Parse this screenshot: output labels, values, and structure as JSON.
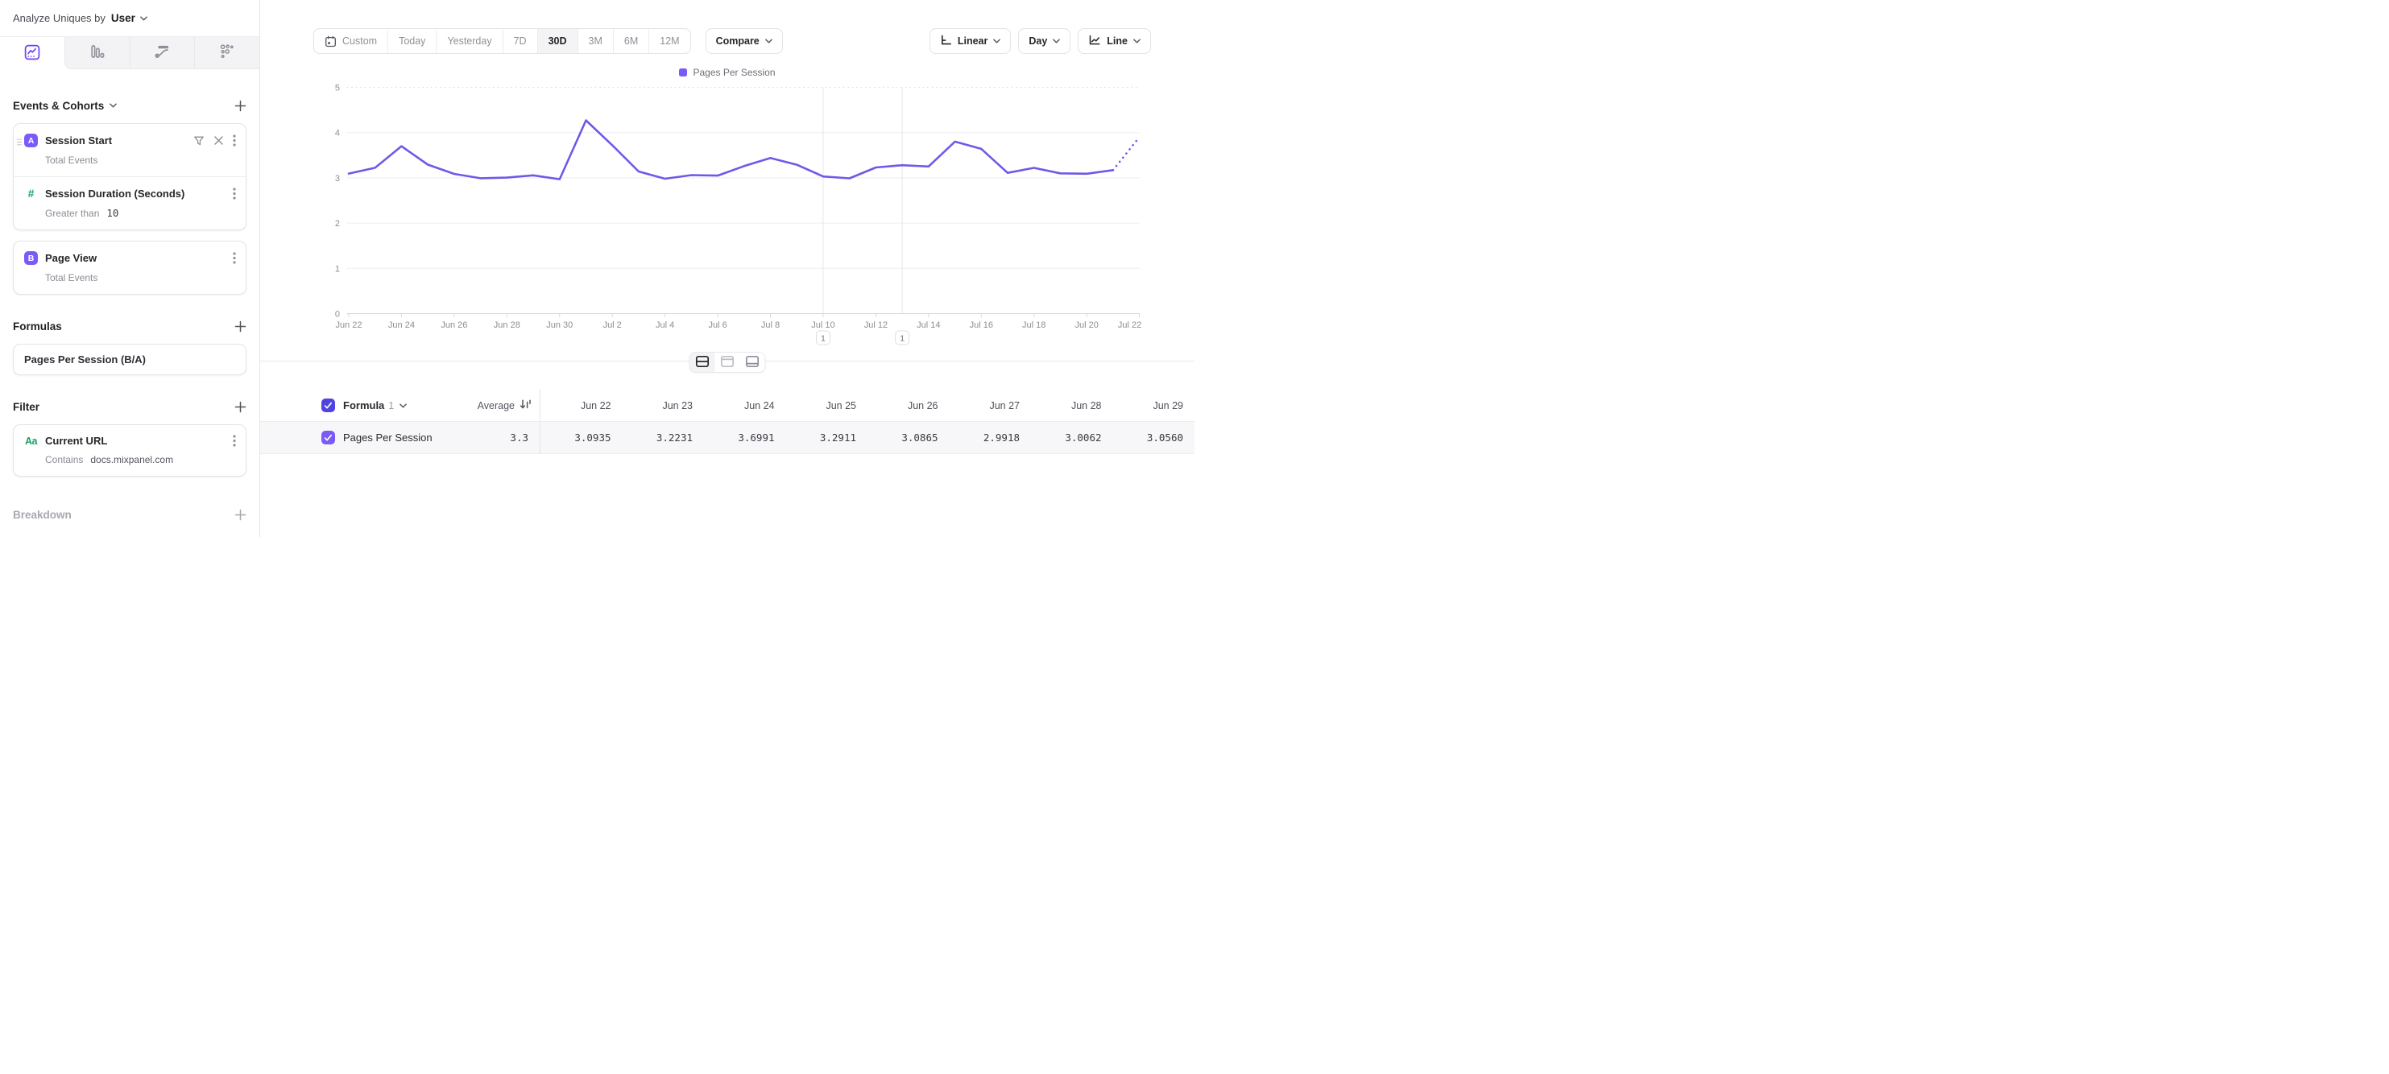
{
  "colors": {
    "accent_purple": "#7158E8",
    "legend_purple": "#7B5BF7",
    "checkbox_indigo": "#4F44E0",
    "icon_green": "#17A463"
  },
  "sidebar": {
    "analyze_label": "Analyze Uniques by",
    "analyze_value": "User",
    "tabs": [
      "line-chart",
      "bar-chart",
      "flow",
      "scatter"
    ],
    "events": {
      "title": "Events & Cohorts",
      "event_a": {
        "letter": "A",
        "name": "Session Start",
        "measure": "Total Events"
      },
      "duration_filter": {
        "name": "Session Duration (Seconds)",
        "operator": "Greater than",
        "value": "10"
      },
      "event_b": {
        "letter": "B",
        "name": "Page View",
        "measure": "Total Events"
      }
    },
    "formulas": {
      "title": "Formulas",
      "formula_name": "Pages Per Session (B/A)"
    },
    "filter": {
      "title": "Filter",
      "property": "Current URL",
      "operator": "Contains",
      "value": "docs.mixpanel.com"
    },
    "breakdown": {
      "title": "Breakdown"
    }
  },
  "toolbar": {
    "ranges": [
      "Custom",
      "Today",
      "Yesterday",
      "7D",
      "30D",
      "3M",
      "6M",
      "12M"
    ],
    "active_range": "30D",
    "compare_label": "Compare",
    "scale_label": "Linear",
    "granularity_label": "Day",
    "chart_type_label": "Line"
  },
  "chart_data": {
    "type": "line",
    "series_name": "Pages Per Session",
    "legend_position": "top-center",
    "ylim": [
      0,
      5
    ],
    "y_ticks": [
      0,
      1,
      2,
      3,
      4,
      5
    ],
    "grid": "horizontal",
    "days": [
      "Jun 22",
      "Jun 23",
      "Jun 24",
      "Jun 25",
      "Jun 26",
      "Jun 27",
      "Jun 28",
      "Jun 29",
      "Jun 30",
      "Jul 1",
      "Jul 2",
      "Jul 3",
      "Jul 4",
      "Jul 5",
      "Jul 6",
      "Jul 7",
      "Jul 8",
      "Jul 9",
      "Jul 10",
      "Jul 11",
      "Jul 12",
      "Jul 13",
      "Jul 14",
      "Jul 15",
      "Jul 16",
      "Jul 17",
      "Jul 18",
      "Jul 19",
      "Jul 20",
      "Jul 21",
      "Jul 22"
    ],
    "values": [
      3.0935,
      3.2231,
      3.6991,
      3.2911,
      3.0865,
      2.9918,
      3.0062,
      3.056,
      2.97,
      4.27,
      3.72,
      3.14,
      2.98,
      3.06,
      3.05,
      3.26,
      3.44,
      3.29,
      3.03,
      2.99,
      3.23,
      3.28,
      3.25,
      3.8,
      3.64,
      3.11,
      3.22,
      3.1,
      3.09,
      3.17,
      3.9
    ],
    "last_point_projected": true,
    "x_tick_every": 2,
    "annotations": [
      {
        "day": "Jul 10",
        "day_index": 18,
        "label": "1"
      },
      {
        "day": "Jul 13",
        "day_index": 21,
        "label": "1"
      }
    ]
  },
  "view_toggle": {
    "options": [
      "split",
      "chart-only",
      "table-only"
    ],
    "active": "split"
  },
  "table": {
    "formula_label": "Formula",
    "formula_index": "1",
    "average_label": "Average",
    "columns": [
      "Jun 22",
      "Jun 23",
      "Jun 24",
      "Jun 25",
      "Jun 26",
      "Jun 27",
      "Jun 28",
      "Jun 29"
    ],
    "row": {
      "name": "Pages Per Session",
      "checked": true,
      "average": "3.3",
      "values": [
        "3.0935",
        "3.2231",
        "3.6991",
        "3.2911",
        "3.0865",
        "2.9918",
        "3.0062",
        "3.0560"
      ]
    }
  }
}
